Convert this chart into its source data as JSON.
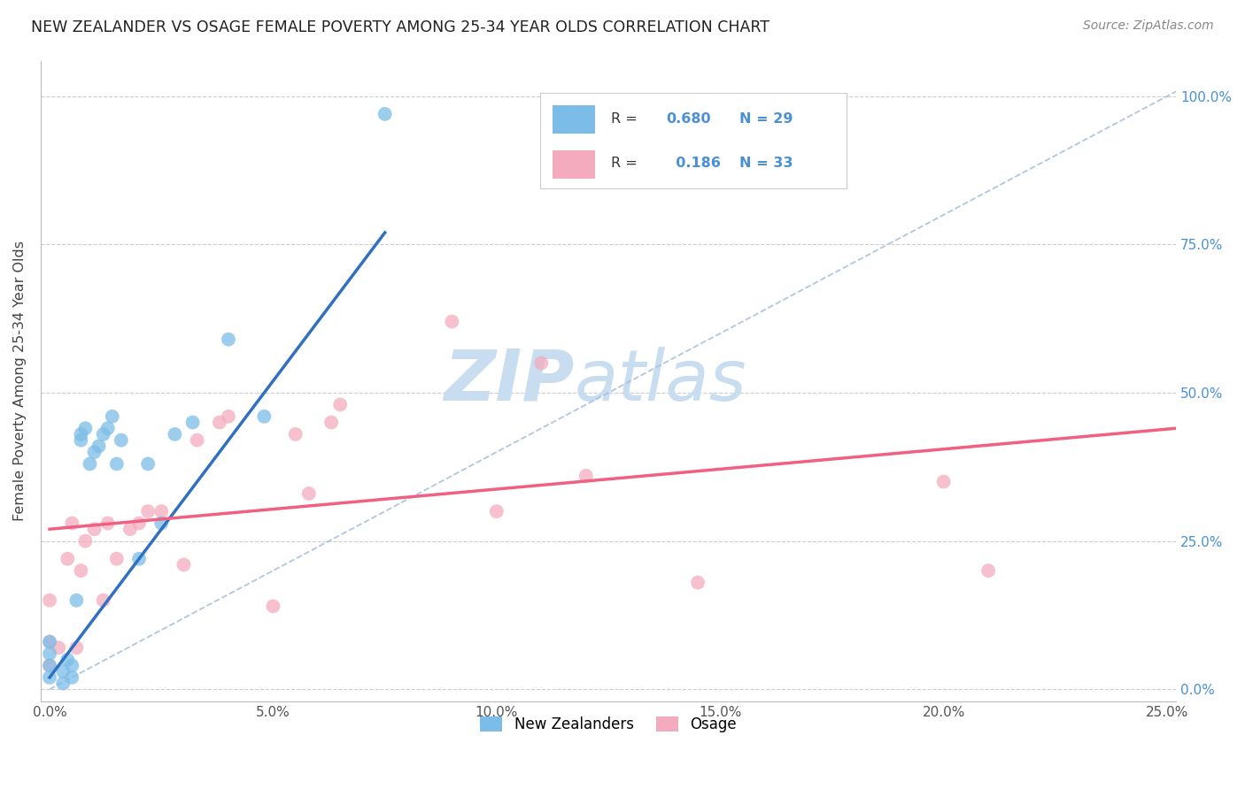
{
  "title": "NEW ZEALANDER VS OSAGE FEMALE POVERTY AMONG 25-34 YEAR OLDS CORRELATION CHART",
  "source": "Source: ZipAtlas.com",
  "ylabel": "Female Poverty Among 25-34 Year Olds",
  "x_ticks": [
    0.0,
    0.05,
    0.1,
    0.15,
    0.2,
    0.25
  ],
  "x_tick_labels": [
    "0.0%",
    "5.0%",
    "10.0%",
    "15.0%",
    "20.0%",
    "25.0%"
  ],
  "y_ticks": [
    0.0,
    0.25,
    0.5,
    0.75,
    1.0
  ],
  "y_tick_labels": [
    "0.0%",
    "25.0%",
    "50.0%",
    "75.0%",
    "100.0%"
  ],
  "xlim": [
    -0.002,
    0.252
  ],
  "ylim": [
    -0.02,
    1.06
  ],
  "nz_R": 0.68,
  "nz_N": 29,
  "osage_R": 0.186,
  "osage_N": 33,
  "nz_color": "#7bbde8",
  "osage_color": "#f5abbe",
  "nz_line_color": "#3070c0",
  "osage_line_color": "#f06080",
  "ref_line_color": "#aabfdd",
  "watermark_zip": "ZIP",
  "watermark_atlas": "atlas",
  "watermark_color": "#c8ddf0",
  "nz_x": [
    0.0,
    0.0,
    0.0,
    0.0,
    0.003,
    0.003,
    0.004,
    0.005,
    0.005,
    0.006,
    0.007,
    0.007,
    0.008,
    0.009,
    0.01,
    0.011,
    0.012,
    0.013,
    0.014,
    0.015,
    0.016,
    0.02,
    0.022,
    0.025,
    0.028,
    0.032,
    0.04,
    0.048,
    0.075
  ],
  "nz_y": [
    0.02,
    0.04,
    0.06,
    0.08,
    0.01,
    0.03,
    0.05,
    0.02,
    0.04,
    0.15,
    0.42,
    0.43,
    0.44,
    0.38,
    0.4,
    0.41,
    0.43,
    0.44,
    0.46,
    0.38,
    0.42,
    0.22,
    0.38,
    0.28,
    0.43,
    0.45,
    0.59,
    0.46,
    0.97
  ],
  "osage_x": [
    0.0,
    0.0,
    0.0,
    0.002,
    0.004,
    0.005,
    0.006,
    0.007,
    0.008,
    0.01,
    0.012,
    0.013,
    0.015,
    0.018,
    0.02,
    0.022,
    0.025,
    0.03,
    0.033,
    0.038,
    0.04,
    0.05,
    0.055,
    0.058,
    0.063,
    0.065,
    0.09,
    0.1,
    0.11,
    0.12,
    0.145,
    0.2,
    0.21
  ],
  "osage_y": [
    0.04,
    0.08,
    0.15,
    0.07,
    0.22,
    0.28,
    0.07,
    0.2,
    0.25,
    0.27,
    0.15,
    0.28,
    0.22,
    0.27,
    0.28,
    0.3,
    0.3,
    0.21,
    0.42,
    0.45,
    0.46,
    0.14,
    0.43,
    0.33,
    0.45,
    0.48,
    0.62,
    0.3,
    0.55,
    0.36,
    0.18,
    0.35,
    0.2
  ],
  "nz_trendline_x": [
    0.0,
    0.075
  ],
  "nz_trendline_y": [
    0.02,
    0.77
  ],
  "osage_trendline_x": [
    0.0,
    0.252
  ],
  "osage_trendline_y": [
    0.27,
    0.44
  ],
  "ref_line_x": [
    0.0,
    0.252
  ],
  "ref_line_y": [
    0.0,
    1.008
  ]
}
